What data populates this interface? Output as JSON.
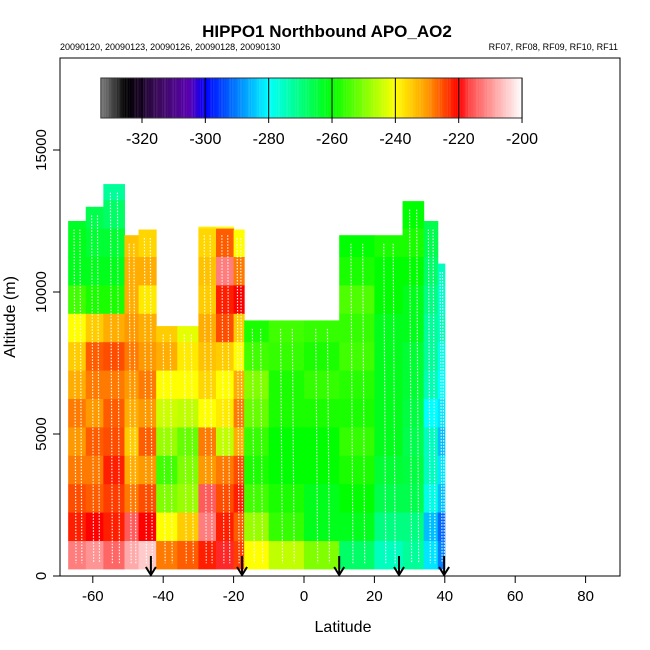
{
  "chart_data": {
    "type": "heatmap",
    "title": "HIPPO1 Northbound APO_AO2",
    "subtitle_left": "20090120, 20090123, 20090126, 20090128, 20090130",
    "subtitle_right": "RF07, RF08, RF09, RF10, RF11",
    "xlabel": "Latitude",
    "ylabel": "Altitude (m)",
    "xlim": [
      -70,
      90
    ],
    "ylim": [
      0,
      18000
    ],
    "xticks": [
      -60,
      -40,
      -20,
      0,
      20,
      40,
      60,
      80
    ],
    "yticks": [
      0,
      5000,
      10000,
      15000
    ],
    "colorbar": {
      "range": [
        -333,
        -200
      ],
      "ticks": [
        -320,
        -300,
        -280,
        -260,
        -240,
        -220,
        -200
      ],
      "stops": [
        {
          "v": -333,
          "c": "#808080"
        },
        {
          "v": -325,
          "c": "#000000"
        },
        {
          "v": -315,
          "c": "#3a0a5a"
        },
        {
          "v": -305,
          "c": "#5a00b0"
        },
        {
          "v": -300,
          "c": "#0000ff"
        },
        {
          "v": -280,
          "c": "#00ffff"
        },
        {
          "v": -260,
          "c": "#00ff00"
        },
        {
          "v": -240,
          "c": "#ffff00"
        },
        {
          "v": -230,
          "c": "#ff9900"
        },
        {
          "v": -220,
          "c": "#ff0000"
        },
        {
          "v": -216,
          "c": "#ff5050"
        },
        {
          "v": -208,
          "c": "#ffaaaa"
        },
        {
          "v": -200,
          "c": "#ffffff"
        }
      ]
    },
    "band_m": 1000,
    "base_m": 250,
    "columns": [
      {
        "lat": [
          -67,
          -62
        ],
        "top": 12500,
        "values": [
          -212,
          -222,
          -225,
          -228,
          -230,
          -228,
          -232,
          -235,
          -240,
          -255,
          -262,
          -262,
          -263
        ]
      },
      {
        "lat": [
          -62,
          -57
        ],
        "top": 13000,
        "values": [
          -210,
          -220,
          -226,
          -228,
          -226,
          -230,
          -228,
          -226,
          -235,
          -258,
          -262,
          -264,
          -266
        ]
      },
      {
        "lat": [
          -57,
          -51
        ],
        "top": 13800,
        "values": [
          -214,
          -222,
          -224,
          -222,
          -225,
          -226,
          -228,
          -225,
          -232,
          -258,
          -262,
          -264,
          -268,
          -272
        ]
      },
      {
        "lat": [
          -51,
          -47
        ],
        "top": 12000,
        "values": [
          -208,
          -215,
          -228,
          -232,
          -235,
          -232,
          -230,
          -228,
          -230,
          -232,
          -232,
          -234
        ]
      },
      {
        "lat": [
          -47,
          -42
        ],
        "top": 12200,
        "values": [
          -205,
          -220,
          -225,
          -230,
          -226,
          -230,
          -228,
          -230,
          -232,
          -238,
          -232,
          -236
        ]
      },
      {
        "lat": [
          -42,
          -36
        ],
        "top": 8800,
        "values": [
          -228,
          -240,
          -250,
          -255,
          -248,
          -244,
          -240,
          -232,
          -235
        ]
      },
      {
        "lat": [
          -36,
          -30
        ],
        "top": 8800,
        "values": [
          -226,
          -235,
          -248,
          -250,
          -252,
          -245,
          -240,
          -238,
          -242
        ]
      },
      {
        "lat": [
          -30,
          -25
        ],
        "top": 12300,
        "values": [
          -222,
          -212,
          -215,
          -230,
          -228,
          -240,
          -236,
          -234,
          -232,
          -235,
          -234,
          -236,
          -238
        ]
      },
      {
        "lat": [
          -25,
          -20
        ],
        "top": 12300,
        "values": [
          -218,
          -222,
          -225,
          -228,
          -245,
          -238,
          -240,
          -235,
          -225,
          -222,
          -212,
          -226,
          -240
        ]
      },
      {
        "lat": [
          -20,
          -17
        ],
        "top": 12200,
        "values": [
          -224,
          -226,
          -222,
          -225,
          -232,
          -228,
          -232,
          -240,
          -235,
          -220,
          -228,
          -240,
          -245
        ]
      },
      {
        "lat": [
          -17,
          -10
        ],
        "top": 9000,
        "values": [
          -240,
          -248,
          -255,
          -258,
          -256,
          -252,
          -250,
          -255,
          -258
        ]
      },
      {
        "lat": [
          -10,
          0
        ],
        "top": 9000,
        "values": [
          -245,
          -256,
          -258,
          -260,
          -260,
          -258,
          -258,
          -256,
          -255
        ]
      },
      {
        "lat": [
          0,
          10
        ],
        "top": 9000,
        "values": [
          -250,
          -262,
          -262,
          -260,
          -260,
          -258,
          -256,
          -258,
          -256
        ]
      },
      {
        "lat": [
          10,
          20
        ],
        "top": 12000,
        "values": [
          -268,
          -262,
          -260,
          -258,
          -256,
          -258,
          -257,
          -255,
          -256,
          -254,
          -258,
          -260
        ]
      },
      {
        "lat": [
          20,
          28
        ],
        "top": 12000,
        "values": [
          -275,
          -270,
          -266,
          -264,
          -262,
          -262,
          -262,
          -262,
          -262,
          -260,
          -260,
          -258
        ]
      },
      {
        "lat": [
          28,
          34
        ],
        "top": 13200,
        "values": [
          -272,
          -270,
          -266,
          -265,
          -266,
          -265,
          -264,
          -264,
          -262,
          -262,
          -260,
          -258,
          -260
        ]
      },
      {
        "lat": [
          34,
          38
        ],
        "top": 12500,
        "values": [
          -282,
          -285,
          -278,
          -275,
          -275,
          -280,
          -274,
          -272,
          -272,
          -270,
          -268,
          -266,
          -266
        ]
      },
      {
        "lat": [
          38,
          40
        ],
        "top": 11000,
        "values": [
          -290,
          -292,
          -285,
          -282,
          -285,
          -282,
          -280,
          -278,
          -275,
          -276,
          -275
        ]
      }
    ],
    "arrows_lat": [
      -43.5,
      -17.6,
      10,
      27,
      39.8
    ]
  }
}
